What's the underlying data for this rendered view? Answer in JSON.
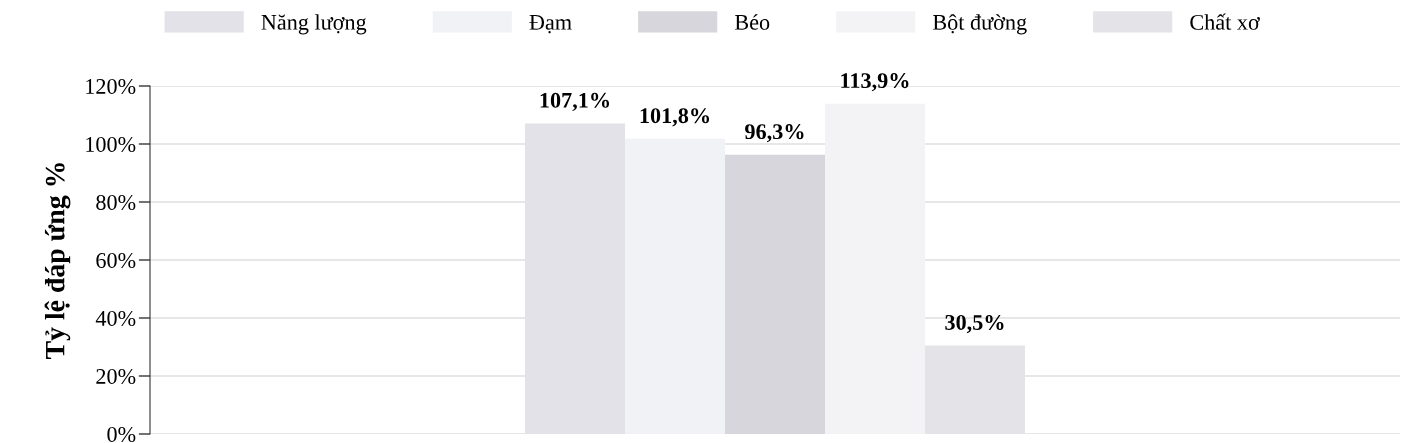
{
  "chart_data": {
    "type": "bar",
    "ylabel": "Tỷ lệ đáp ứng %",
    "categories": [
      null
    ],
    "series": [
      {
        "name": "Năng lượng",
        "color": "#e2e2e8",
        "values": [
          107.1
        ],
        "value_labels": [
          "107,1%"
        ]
      },
      {
        "name": "Đạm",
        "color": "#f1f2f5",
        "values": [
          101.8
        ],
        "value_labels": [
          "101,8%"
        ]
      },
      {
        "name": "Béo",
        "color": "#d6d6dc",
        "values": [
          96.3
        ],
        "value_labels": [
          "96,3%"
        ]
      },
      {
        "name": "Bột đường",
        "color": "#f3f3f6",
        "values": [
          113.9
        ],
        "value_labels": [
          "113,9%"
        ]
      },
      {
        "name": "Chất xơ",
        "color": "#e4e4e8",
        "values": [
          30.5
        ],
        "value_labels": [
          "30,5%"
        ]
      }
    ],
    "ylim": [
      0,
      120
    ],
    "yticks": [
      {
        "value": 0,
        "label": "0%"
      },
      {
        "value": 20,
        "label": "20%"
      },
      {
        "value": 40,
        "label": "40%"
      },
      {
        "value": 60,
        "label": "60%"
      },
      {
        "value": 80,
        "label": "80%"
      },
      {
        "value": 100,
        "label": "100%"
      },
      {
        "value": 120,
        "label": "120%"
      }
    ],
    "grid": "y",
    "legend": "top"
  }
}
